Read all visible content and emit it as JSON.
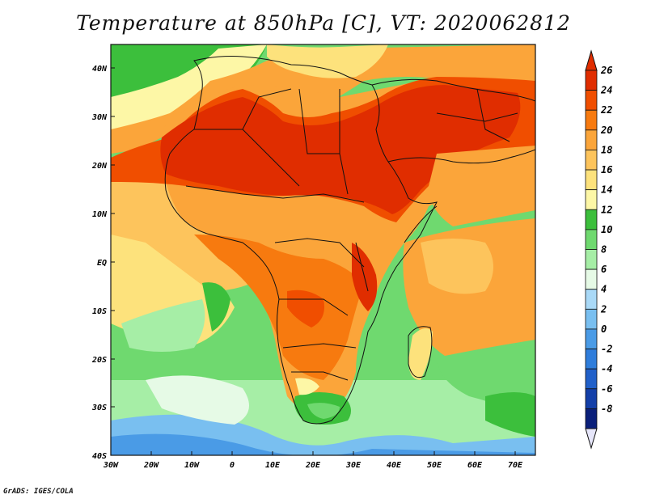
{
  "title": "Temperature at 850hPa [C], VT: 2020062812",
  "credit": "GrADS: IGES/COLA",
  "map": {
    "lon_labels": [
      "30W",
      "20W",
      "10W",
      "0",
      "10E",
      "20E",
      "30E",
      "40E",
      "50E",
      "60E",
      "70E"
    ],
    "lat_labels": [
      "40N",
      "30N",
      "20N",
      "10N",
      "EQ",
      "10S",
      "20S",
      "30S",
      "40S"
    ]
  },
  "colorbar": {
    "labels": [
      "26",
      "24",
      "22",
      "20",
      "18",
      "16",
      "14",
      "12",
      "10",
      "8",
      "6",
      "4",
      "2",
      "0",
      "-2",
      "-4",
      "-6",
      "-8"
    ],
    "colors": [
      "#e02d00",
      "#f04e00",
      "#f77a0f",
      "#fba53a",
      "#fdc45c",
      "#fde27c",
      "#fdf7a6",
      "#3cbf3c",
      "#6fd96f",
      "#a6eea6",
      "#e6fae6",
      "#a9d9f7",
      "#79bff0",
      "#4a9be6",
      "#2f7ddb",
      "#2160c9",
      "#133fa8",
      "#0a1f7a"
    ]
  }
}
